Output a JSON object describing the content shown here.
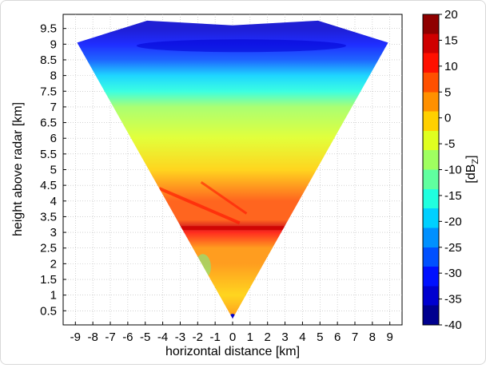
{
  "chart_data": {
    "type": "heatmap",
    "title": "",
    "xlabel": "horizontal distance [km]",
    "ylabel": "height above radar [km]",
    "xlim": [
      -9.7,
      9.7
    ],
    "ylim": [
      0.05,
      9.95
    ],
    "x_ticks": [
      "-9",
      "-8",
      "-7",
      "-6",
      "-5",
      "-4",
      "-3",
      "-2",
      "-1",
      "0",
      "1",
      "2",
      "3",
      "4",
      "5",
      "6",
      "7",
      "8",
      "9"
    ],
    "y_ticks": [
      "0.5",
      "1",
      "1.5",
      "2",
      "2.5",
      "3",
      "3.5",
      "4",
      "4.5",
      "5",
      "5.5",
      "6",
      "6.5",
      "7",
      "7.5",
      "8",
      "8.5",
      "9",
      "9.5"
    ],
    "grid": true,
    "colorbar": {
      "label": "[dB",
      "label_subscript": "Z",
      "label_close": "]",
      "min": -40,
      "max": 20,
      "ticks": [
        "20",
        "15",
        "10",
        "5",
        "0",
        "-5",
        "-10",
        "-15",
        "-20",
        "-25",
        "-30",
        "-35",
        "-40"
      ],
      "colors": [
        "#00008f",
        "#0000cf",
        "#0010ff",
        "#0050ff",
        "#0090ff",
        "#00d0ff",
        "#20ffdf",
        "#60ff9f",
        "#9fff60",
        "#dfff20",
        "#ffd000",
        "#ff9000",
        "#ff5000",
        "#ff1000",
        "#cf0000",
        "#8f0000"
      ]
    },
    "cone": {
      "apex": [
        0,
        0.25
      ],
      "top_left": [
        -8.9,
        9.05
      ],
      "top_right": [
        8.9,
        9.05
      ]
    },
    "reflectivity_profile_dBZ": [
      {
        "height": 0.3,
        "value": 3
      },
      {
        "height": 1.0,
        "value": 1
      },
      {
        "height": 2.0,
        "value": 2
      },
      {
        "height": 2.5,
        "value": 3
      },
      {
        "height": 3.0,
        "value": 10
      },
      {
        "height": 3.15,
        "value": 14
      },
      {
        "height": 3.4,
        "value": 7
      },
      {
        "height": 4.0,
        "value": 5
      },
      {
        "height": 4.5,
        "value": 2
      },
      {
        "height": 5.0,
        "value": 0
      },
      {
        "height": 6.0,
        "value": -5
      },
      {
        "height": 7.0,
        "value": -10
      },
      {
        "height": 7.5,
        "value": -14
      },
      {
        "height": 8.0,
        "value": -20
      },
      {
        "height": 8.5,
        "value": -26
      },
      {
        "height": 9.0,
        "value": -32
      },
      {
        "height": 9.5,
        "value": -35
      }
    ]
  }
}
